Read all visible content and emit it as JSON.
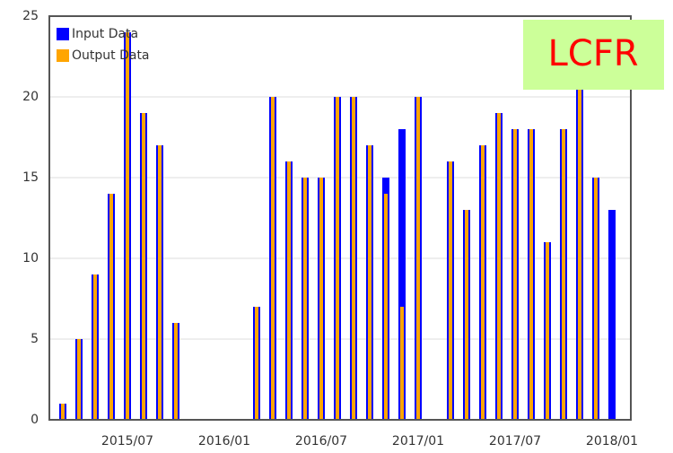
{
  "chart_data": {
    "type": "bar",
    "label": "LCFR",
    "categories": [
      null,
      null,
      null,
      null,
      "2015/07",
      null,
      null,
      null,
      null,
      null,
      "2016/01",
      null,
      null,
      null,
      null,
      null,
      "2016/07",
      null,
      null,
      null,
      null,
      null,
      "2017/01",
      null,
      null,
      null,
      null,
      null,
      "2017/07",
      null,
      null,
      null,
      null,
      null,
      "2018/01"
    ],
    "series": [
      {
        "name": "Input Data",
        "color": "#0000ff",
        "values": [
          1,
          5,
          9,
          14,
          24,
          19,
          17,
          6,
          null,
          null,
          null,
          null,
          7,
          20,
          16,
          15,
          15,
          20,
          20,
          17,
          15,
          18,
          20,
          null,
          16,
          13,
          17,
          19,
          18,
          18,
          11,
          18,
          21,
          15,
          13
        ]
      },
      {
        "name": "Output Data",
        "color": "#ffa500",
        "values": [
          1,
          5,
          9,
          14,
          24,
          19,
          17,
          6,
          null,
          null,
          null,
          null,
          7,
          20,
          16,
          15,
          15,
          20,
          20,
          17,
          14,
          7,
          20,
          null,
          16,
          13,
          17,
          19,
          18,
          18,
          11,
          18,
          21,
          15,
          null
        ]
      }
    ],
    "ylim": [
      0,
      25
    ],
    "yticks": [
      0,
      5,
      10,
      15,
      20,
      25
    ],
    "grid": true,
    "legend": "top-left"
  }
}
